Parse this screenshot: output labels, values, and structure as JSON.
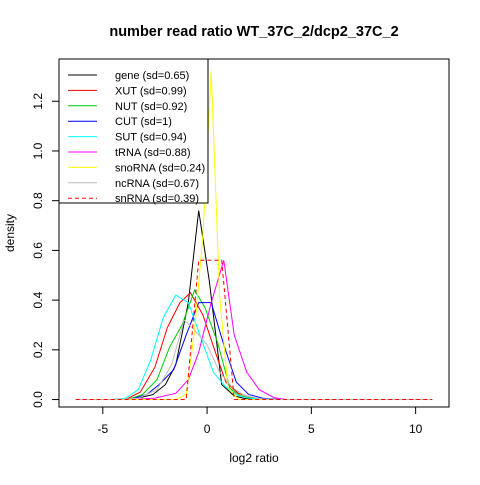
{
  "chart_data": {
    "type": "line",
    "title": "number read ratio WT_37C_2/dcp2_37C_2",
    "xlabel": "log2 ratio",
    "ylabel": "density",
    "xlim": [
      -7.1,
      11.6
    ],
    "ylim": [
      -0.03,
      1.37
    ],
    "xticks": [
      -5,
      0,
      5,
      10
    ],
    "yticks": [
      0.0,
      0.2,
      0.4,
      0.6,
      0.8,
      1.0,
      1.2
    ],
    "xtick_labels": [
      "-5",
      "0",
      "5",
      "10"
    ],
    "ytick_labels": [
      "0.0",
      "0.2",
      "0.4",
      "0.6",
      "0.8",
      "1.0",
      "1.2"
    ],
    "grid": false,
    "legend_position": "top-left",
    "series": [
      {
        "name": "gene (sd=0.65)",
        "color": "#000000",
        "dash": "solid",
        "x": [
          -6.3,
          -4.5,
          -3.9,
          -3.2,
          -2.6,
          -2.0,
          -1.5,
          -0.9,
          -0.4,
          0.1,
          0.7,
          1.3,
          1.8,
          2.5,
          3.2,
          4.0,
          10.8
        ],
        "y": [
          0,
          0,
          0.003,
          0.008,
          0.02,
          0.06,
          0.14,
          0.39,
          0.76,
          0.48,
          0.06,
          0.015,
          0.004,
          0.001,
          0,
          0,
          0
        ]
      },
      {
        "name": "XUT (sd=0.99)",
        "color": "#ff0000",
        "dash": "solid",
        "x": [
          -6.3,
          -4.5,
          -3.8,
          -3.2,
          -2.5,
          -1.9,
          -1.3,
          -0.8,
          -0.2,
          0.4,
          0.9,
          1.5,
          2.1,
          2.8,
          3.5,
          10.8
        ],
        "y": [
          0,
          0,
          0.004,
          0.03,
          0.13,
          0.29,
          0.39,
          0.43,
          0.34,
          0.19,
          0.07,
          0.025,
          0.008,
          0.002,
          0,
          0
        ]
      },
      {
        "name": "NUT (sd=0.92)",
        "color": "#00cc00",
        "dash": "solid",
        "x": [
          -6.3,
          -4.5,
          -3.7,
          -3.1,
          -2.4,
          -1.8,
          -1.2,
          -0.6,
          -0.1,
          0.5,
          1.1,
          1.6,
          2.2,
          2.9,
          3.5,
          10.8
        ],
        "y": [
          0,
          0,
          0.003,
          0.02,
          0.08,
          0.21,
          0.3,
          0.44,
          0.37,
          0.23,
          0.045,
          0.015,
          0.005,
          0.001,
          0,
          0
        ]
      },
      {
        "name": "CUT (sd=1)",
        "color": "#0000ff",
        "dash": "solid",
        "x": [
          -6.3,
          -4.5,
          -3.6,
          -2.9,
          -2.3,
          -1.6,
          -1.0,
          -0.4,
          0.2,
          0.8,
          1.4,
          2.0,
          2.7,
          3.4,
          10.8
        ],
        "y": [
          0,
          0,
          0.003,
          0.02,
          0.06,
          0.12,
          0.26,
          0.39,
          0.39,
          0.22,
          0.07,
          0.02,
          0.005,
          0,
          0
        ]
      },
      {
        "name": "SUT (sd=0.94)",
        "color": "#00ffff",
        "dash": "solid",
        "x": [
          -6.3,
          -4.5,
          -3.9,
          -3.3,
          -2.7,
          -2.1,
          -1.5,
          -0.9,
          -0.3,
          0.3,
          0.9,
          1.5,
          2.0,
          2.6,
          3.3,
          10.8
        ],
        "y": [
          0,
          0,
          0.006,
          0.04,
          0.16,
          0.33,
          0.42,
          0.39,
          0.25,
          0.11,
          0.05,
          0.015,
          0.005,
          0.001,
          0,
          0
        ]
      },
      {
        "name": "tRNA (sd=0.88)",
        "color": "#ff00ff",
        "dash": "solid",
        "x": [
          -6.3,
          -3.5,
          -2.5,
          -1.5,
          -0.9,
          -0.4,
          0.2,
          0.8,
          1.3,
          1.9,
          2.5,
          3.2,
          3.8,
          10.8
        ],
        "y": [
          0,
          0,
          0.006,
          0.025,
          0.08,
          0.19,
          0.39,
          0.56,
          0.26,
          0.11,
          0.04,
          0.008,
          0,
          0
        ]
      },
      {
        "name": "snoRNA (sd=0.24)",
        "color": "#ffff00",
        "dash": "solid",
        "x": [
          -6.3,
          -1.5,
          -1.0,
          -0.6,
          -0.2,
          0.2,
          0.6,
          1.0,
          1.5,
          10.8
        ],
        "y": [
          0,
          0,
          0.02,
          0.28,
          0.66,
          1.32,
          0.42,
          0.05,
          0,
          0
        ]
      },
      {
        "name": "ncRNA (sd=0.67)",
        "color": "#bbbbbb",
        "dash": "solid",
        "x": [
          -6.3,
          -4.5,
          -3.3,
          -2.4,
          -1.7,
          -1.1,
          -0.6,
          0.0,
          0.6,
          1.2,
          1.8,
          2.6,
          3.3,
          10.8
        ],
        "y": [
          0,
          0,
          0.005,
          0.04,
          0.14,
          0.32,
          0.28,
          0.22,
          0.11,
          0.05,
          0.015,
          0.003,
          0,
          0
        ]
      },
      {
        "name": "snRNA (sd=0.39)",
        "color": "#ff0000",
        "dash": "dashed",
        "x": [
          -6.3,
          -1.0,
          -0.4,
          0.7,
          1.3,
          10.8
        ],
        "y": [
          0,
          0,
          0.56,
          0.56,
          0,
          0
        ]
      }
    ]
  }
}
